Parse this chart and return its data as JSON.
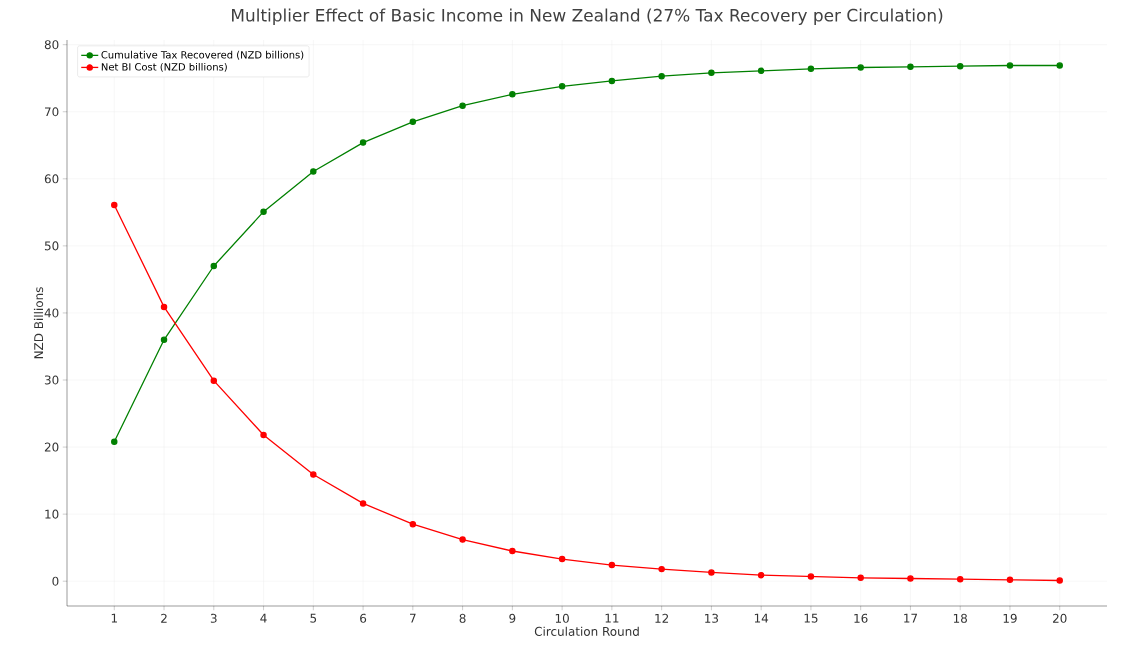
{
  "chart_data": {
    "type": "line",
    "title": "Multiplier Effect of Basic Income in New Zealand (27% Tax Recovery per Circulation)",
    "xlabel": "Circulation Round",
    "ylabel": "NZD Billions",
    "x": [
      1,
      2,
      3,
      4,
      5,
      6,
      7,
      8,
      9,
      10,
      11,
      12,
      13,
      14,
      15,
      16,
      17,
      18,
      19,
      20
    ],
    "series": [
      {
        "name": "Cumulative Tax Recovered (NZD billions)",
        "color": "#008000",
        "values": [
          20.8,
          36.0,
          47.0,
          55.1,
          61.1,
          65.4,
          68.5,
          70.9,
          72.6,
          73.8,
          74.6,
          75.3,
          75.8,
          76.1,
          76.4,
          76.6,
          76.7,
          76.8,
          76.9,
          76.9
        ]
      },
      {
        "name": "Net BI Cost (NZD billions)",
        "color": "#ff0000",
        "values": [
          56.1,
          40.9,
          29.9,
          21.8,
          15.9,
          11.6,
          8.5,
          6.2,
          4.5,
          3.3,
          2.4,
          1.8,
          1.3,
          0.9,
          0.7,
          0.5,
          0.4,
          0.3,
          0.2,
          0.1
        ]
      }
    ],
    "xlim": [
      0.05,
      20.95
    ],
    "ylim": [
      -3.7,
      80.7
    ],
    "xticks": [
      1,
      2,
      3,
      4,
      5,
      6,
      7,
      8,
      9,
      10,
      11,
      12,
      13,
      14,
      15,
      16,
      17,
      18,
      19,
      20
    ],
    "yticks": [
      0,
      10,
      20,
      30,
      40,
      50,
      60,
      70,
      80
    ],
    "grid": true,
    "legend": "top left",
    "marker": "circle",
    "line_style": "solid"
  }
}
